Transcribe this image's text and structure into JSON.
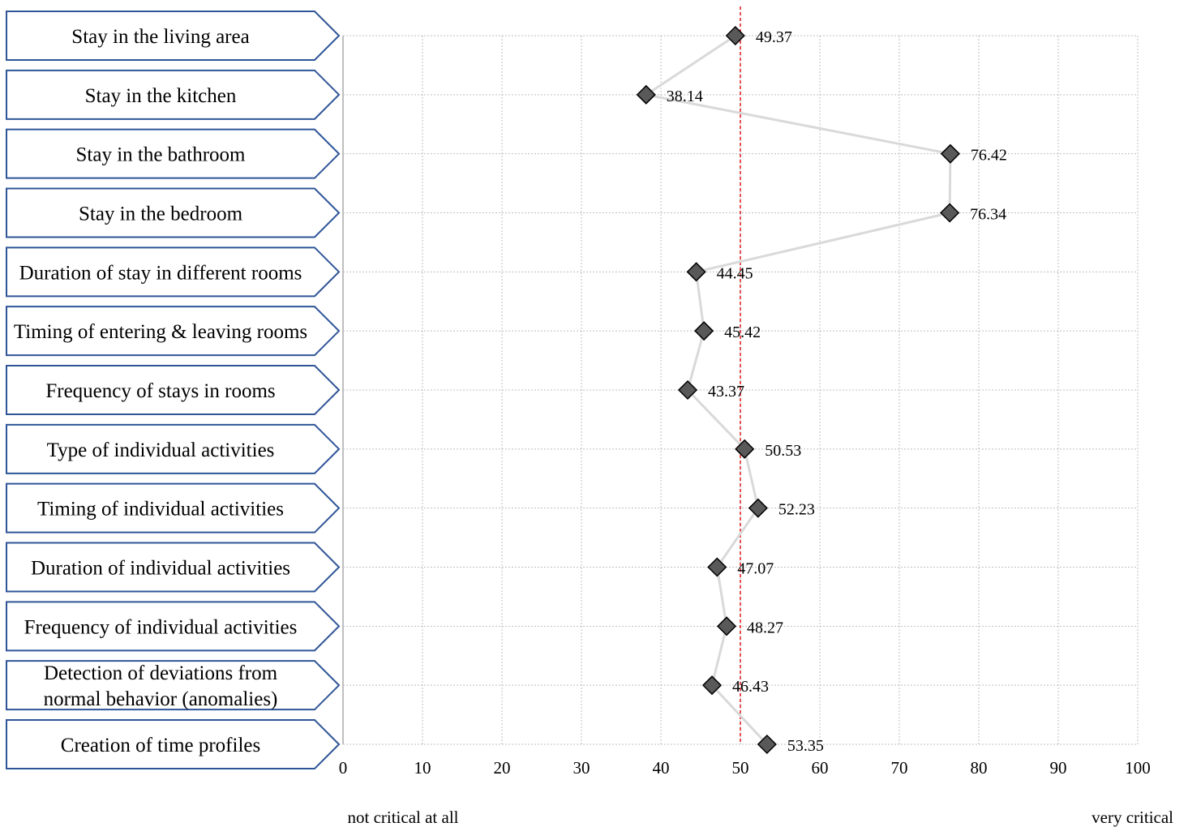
{
  "chart_data": {
    "type": "line",
    "categories": [
      "Stay in the living area",
      "Stay in the kitchen",
      "Stay in the bathroom",
      "Stay in the bedroom",
      "Duration of stay in different rooms",
      "Timing of entering & leaving rooms",
      "Frequency of stays in rooms",
      "Type of individual activities",
      "Timing of individual activities",
      "Duration of individual activities",
      "Frequency of individual activities",
      "Detection of deviations from normal behavior (anomalies)",
      "Creation of time profiles"
    ],
    "values": [
      49.37,
      38.14,
      76.42,
      76.34,
      44.45,
      45.42,
      43.37,
      50.53,
      52.23,
      47.07,
      48.27,
      46.43,
      53.35
    ],
    "value_labels": [
      "49.37",
      "38.14",
      "76.42",
      "76.34",
      "44.45",
      "45.42",
      "43.37",
      "50.53",
      "52.23",
      "47.07",
      "48.27",
      "46.43",
      "53.35"
    ],
    "xlim": [
      0,
      100
    ],
    "x_ticks": [
      0,
      10,
      20,
      30,
      40,
      50,
      60,
      70,
      80,
      90,
      100
    ],
    "x_tick_labels": [
      "0",
      "10",
      "20",
      "30",
      "40",
      "50",
      "60",
      "70",
      "80",
      "90",
      "100"
    ],
    "reference_line": 50,
    "axis_low_label": "not critical at all",
    "axis_high_label": "very critical",
    "grid": true,
    "orientation": "horizontal",
    "colors": {
      "marker_fill": "#595959",
      "marker_stroke": "#000000",
      "connector": "#d9d9d9",
      "reference": "#e0161c",
      "label_box_stroke": "#2f5597",
      "grid": "#bfbfbf"
    }
  }
}
